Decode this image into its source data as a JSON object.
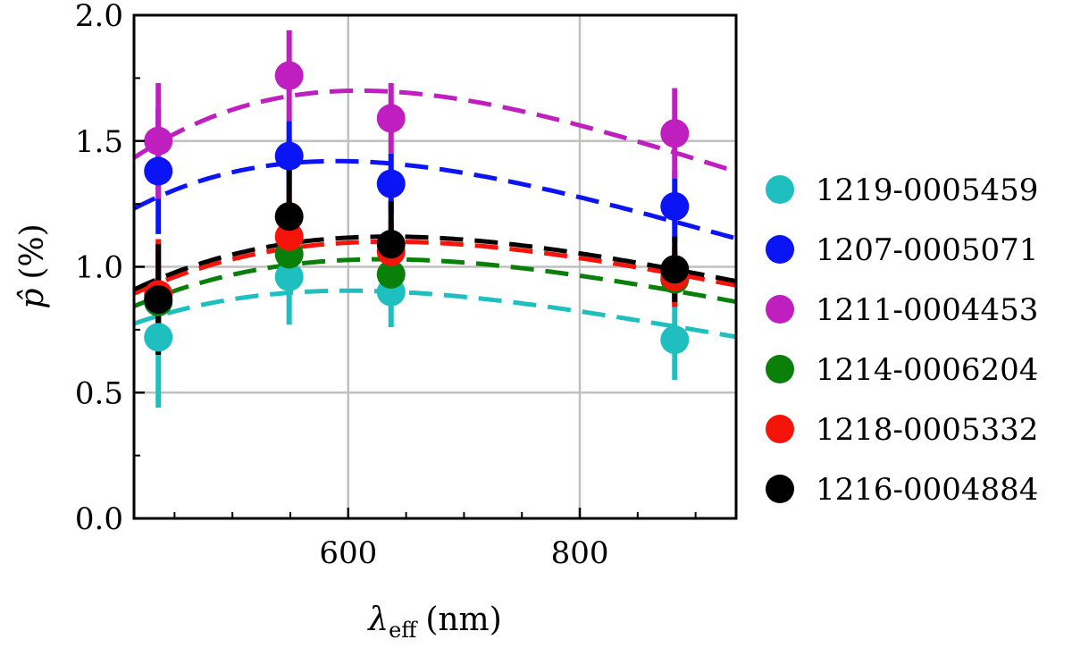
{
  "chart_data": {
    "type": "scatter",
    "xlabel_main": "λ",
    "xlabel_sub": "eff",
    "xlabel_unit": "(nm)",
    "ylabel_main": "p̂",
    "ylabel_unit": "(%)",
    "xlim": [
      415,
      935
    ],
    "ylim": [
      0.0,
      2.0
    ],
    "xticks": [
      600,
      800
    ],
    "xtick_labels": [
      "600",
      "800"
    ],
    "yticks": [
      0.0,
      0.5,
      1.0,
      1.5,
      2.0
    ],
    "ytick_labels": [
      "0.0",
      "0.5",
      "1.0",
      "1.5",
      "2.0"
    ],
    "grid": true,
    "legend_position": "right",
    "series": [
      {
        "name": "1219-0005459",
        "color": "#1fbfbf",
        "x": [
          436,
          549,
          637,
          882
        ],
        "y": [
          0.72,
          0.96,
          0.9,
          0.71
        ],
        "err": [
          0.28,
          0.19,
          0.14,
          0.16
        ],
        "fit": {
          "pmax": 0.905,
          "lmax": 600,
          "K": 1.15
        }
      },
      {
        "name": "1207-0005071",
        "color": "#0a14f5",
        "x": [
          436,
          549,
          637,
          882
        ],
        "y": [
          1.38,
          1.44,
          1.33,
          1.24
        ],
        "err": [
          0.25,
          0.14,
          0.12,
          0.14
        ],
        "fit": {
          "pmax": 1.42,
          "lmax": 590,
          "K": 1.15
        }
      },
      {
        "name": "1211-0004453",
        "color": "#bf1fbf",
        "x": [
          436,
          549,
          637,
          882
        ],
        "y": [
          1.5,
          1.76,
          1.59,
          1.53
        ],
        "err": [
          0.23,
          0.18,
          0.14,
          0.18
        ],
        "fit": {
          "pmax": 1.7,
          "lmax": 610,
          "K": 1.15
        }
      },
      {
        "name": "1214-0006204",
        "color": "#0a7f0a",
        "x": [
          436,
          549,
          637,
          882
        ],
        "y": [
          0.86,
          1.05,
          0.97,
          0.95
        ],
        "err": [
          0.1,
          0.1,
          0.1,
          0.1
        ],
        "fit": {
          "pmax": 1.03,
          "lmax": 630,
          "K": 1.15
        }
      },
      {
        "name": "1218-0005332",
        "color": "#f5140a",
        "x": [
          436,
          549,
          637,
          882
        ],
        "y": [
          0.89,
          1.12,
          1.06,
          0.96
        ],
        "err": [
          0.22,
          0.18,
          0.13,
          0.12
        ],
        "fit": {
          "pmax": 1.1,
          "lmax": 635,
          "K": 1.15
        }
      },
      {
        "name": "1216-0004884",
        "color": "#000000",
        "x": [
          436,
          549,
          637,
          882
        ],
        "y": [
          0.87,
          1.2,
          1.09,
          0.99
        ],
        "err": [
          0.22,
          0.22,
          0.17,
          0.13
        ],
        "fit": {
          "pmax": 1.12,
          "lmax": 635,
          "K": 1.15
        }
      }
    ]
  }
}
